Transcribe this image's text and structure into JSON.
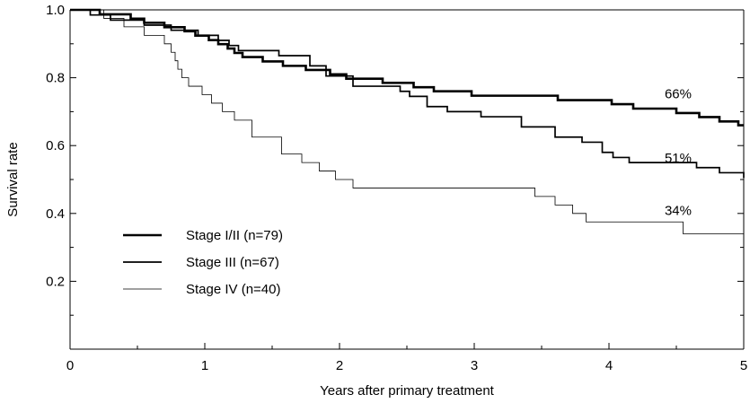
{
  "chart_data": {
    "type": "line",
    "title": "",
    "xlabel": "Years after primary treatment",
    "ylabel": "Survival rate",
    "xlim": [
      0,
      5
    ],
    "ylim": [
      0,
      1.0
    ],
    "x_ticks": [
      "0",
      "1",
      "2",
      "3",
      "4",
      "5"
    ],
    "y_ticks": [
      "0.2",
      "0.4",
      "0.6",
      "0.8",
      "1.0"
    ],
    "grid": false,
    "legend_placement": "lower-left",
    "series": [
      {
        "name": "Stage I/II (n=79)",
        "end_label": "66%",
        "x": [
          0,
          0.22,
          0.45,
          0.55,
          0.7,
          0.85,
          0.93,
          1.03,
          1.1,
          1.17,
          1.22,
          1.28,
          1.43,
          1.58,
          1.75,
          1.93,
          2.05,
          2.32,
          2.55,
          2.7,
          2.85,
          2.98,
          3.28,
          3.62,
          3.85,
          4.02,
          4.18,
          4.32,
          4.5,
          4.67,
          4.82,
          4.96
        ],
        "y": [
          1.0,
          0.987,
          0.974,
          0.962,
          0.949,
          0.937,
          0.924,
          0.911,
          0.899,
          0.886,
          0.873,
          0.861,
          0.848,
          0.835,
          0.823,
          0.81,
          0.797,
          0.785,
          0.772,
          0.76,
          0.76,
          0.747,
          0.747,
          0.734,
          0.734,
          0.722,
          0.709,
          0.709,
          0.696,
          0.684,
          0.671,
          0.66
        ]
      },
      {
        "name": "Stage III (n=67)",
        "end_label": "51%",
        "x": [
          0,
          0.15,
          0.3,
          0.55,
          0.75,
          0.95,
          1.1,
          1.18,
          1.25,
          1.55,
          1.78,
          1.9,
          2.1,
          2.45,
          2.52,
          2.65,
          2.8,
          3.05,
          3.35,
          3.6,
          3.8,
          3.95,
          4.03,
          4.15,
          4.65,
          4.82,
          5.0
        ],
        "y": [
          1.0,
          0.985,
          0.97,
          0.955,
          0.94,
          0.925,
          0.91,
          0.895,
          0.88,
          0.865,
          0.835,
          0.805,
          0.775,
          0.76,
          0.745,
          0.715,
          0.7,
          0.685,
          0.655,
          0.625,
          0.61,
          0.58,
          0.565,
          0.55,
          0.535,
          0.52,
          0.505
        ]
      },
      {
        "name": "Stage IV (n=40)",
        "end_label": "34%",
        "x": [
          0,
          0.25,
          0.4,
          0.55,
          0.7,
          0.75,
          0.78,
          0.8,
          0.83,
          0.88,
          0.98,
          1.05,
          1.13,
          1.22,
          1.35,
          1.57,
          1.72,
          1.85,
          1.97,
          2.1,
          3.45,
          3.6,
          3.73,
          3.83,
          4.55,
          5.0
        ],
        "y": [
          1.0,
          0.975,
          0.95,
          0.925,
          0.9,
          0.875,
          0.85,
          0.825,
          0.8,
          0.775,
          0.75,
          0.725,
          0.7,
          0.675,
          0.625,
          0.575,
          0.55,
          0.525,
          0.5,
          0.475,
          0.45,
          0.425,
          0.4,
          0.375,
          0.34,
          0.34
        ]
      }
    ]
  },
  "colors": {
    "line": "#000000",
    "background": "#ffffff"
  }
}
